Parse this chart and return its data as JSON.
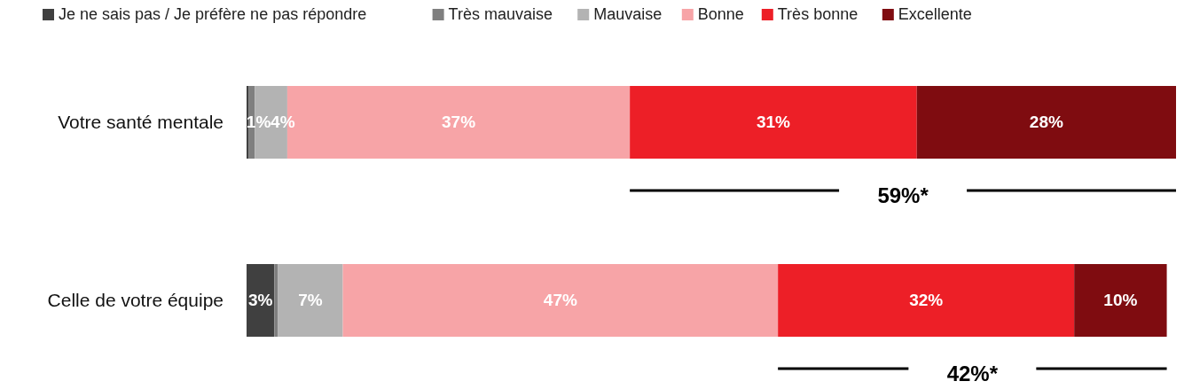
{
  "chart_data": {
    "type": "bar",
    "orientation": "horizontal",
    "stacked": true,
    "categories": [
      "Votre santé mentale",
      "Celle de votre équipe"
    ],
    "legend": "top",
    "series": [
      {
        "name": "Je ne sais pas / Je préfère ne pas répondre",
        "color": "#404040",
        "values": [
          0.2,
          3
        ],
        "value_labels": [
          null,
          "3%"
        ]
      },
      {
        "name": "Très mauvaise",
        "color": "#7f7f7f",
        "values": [
          0.7,
          0.4
        ],
        "value_labels": [
          "1%",
          null
        ]
      },
      {
        "name": "Mauvaise",
        "color": "#b3b3b3",
        "values": [
          3.5,
          7
        ],
        "value_labels": [
          "4%",
          "7%"
        ]
      },
      {
        "name": "Bonne",
        "color": "#f7a4a7",
        "values": [
          37,
          47
        ],
        "value_labels": [
          "37%",
          "47%"
        ]
      },
      {
        "name": "Très bonne",
        "color": "#ed1f27",
        "values": [
          31,
          32
        ],
        "value_labels": [
          "31%",
          "32%"
        ]
      },
      {
        "name": "Excellente",
        "color": "#7f0c10",
        "values": [
          28,
          10
        ],
        "value_labels": [
          "28%",
          "10%"
        ]
      }
    ],
    "annotations": [
      "59%*",
      "42%*"
    ]
  }
}
